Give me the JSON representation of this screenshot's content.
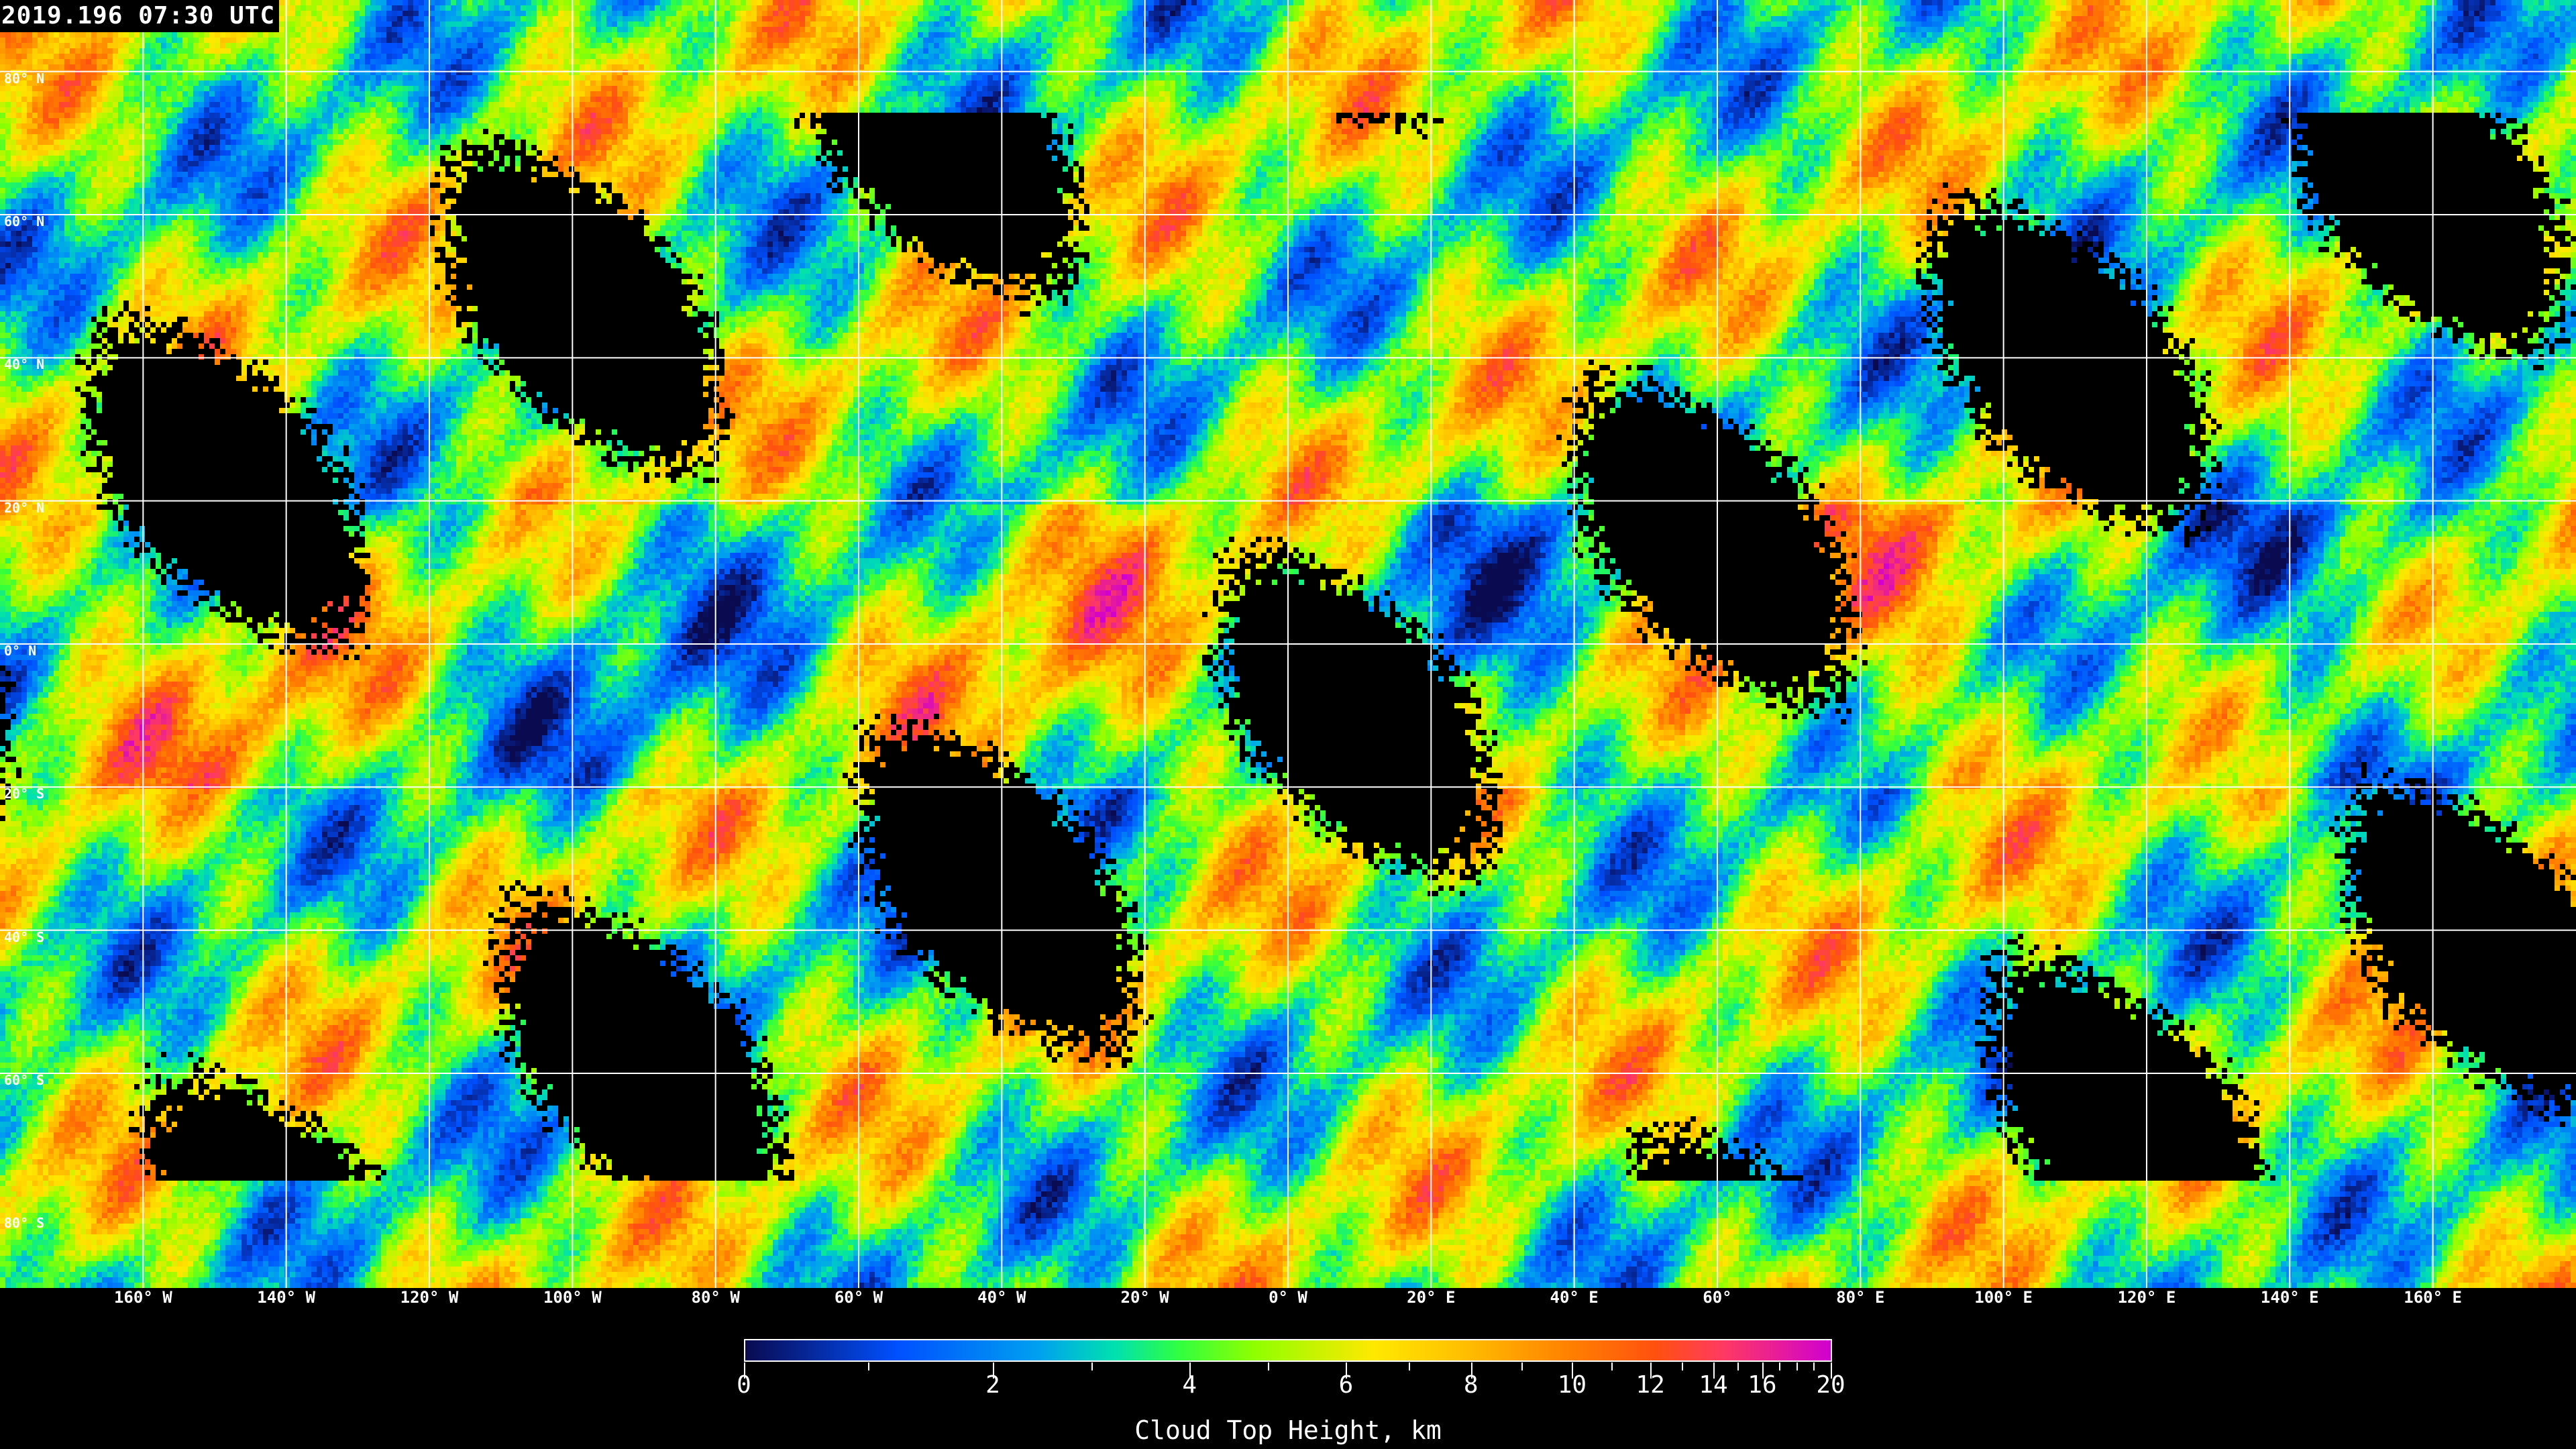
{
  "title": "2019.196 07:30 UTC",
  "map": {
    "projection": "equirectangular",
    "lat_labels": [
      "80° N",
      "60° N",
      "40° N",
      "20° N",
      "0° N",
      "20° S",
      "40° S",
      "60° S",
      "80° S"
    ],
    "lon_labels": [
      "160° W",
      "140° W",
      "120° W",
      "100° W",
      "80° W",
      "60° W",
      "40° W",
      "20° W",
      "0° W",
      "20° E",
      "40° E",
      "60°",
      "80° E",
      "100° E",
      "120° E",
      "140° E",
      "160° E"
    ],
    "gridline_color": "#ffffff",
    "no_data_color": "#000000"
  },
  "colorbar": {
    "title": "Cloud Top Height, km",
    "range": [
      0,
      20
    ],
    "major_ticks": [
      "0",
      "2",
      "4",
      "6",
      "8",
      "10",
      "12",
      "14",
      "16",
      "20"
    ],
    "minor_ticks": [
      1,
      3,
      5,
      7,
      9,
      11,
      13,
      15,
      17,
      18,
      19
    ],
    "colors": [
      "#0a0a50",
      "#0050ff",
      "#00a0f0",
      "#00e0b0",
      "#30ff40",
      "#90ff00",
      "#ffe800",
      "#ffc000",
      "#ff8000",
      "#ff5010",
      "#ff3a60",
      "#d000d0"
    ]
  }
}
